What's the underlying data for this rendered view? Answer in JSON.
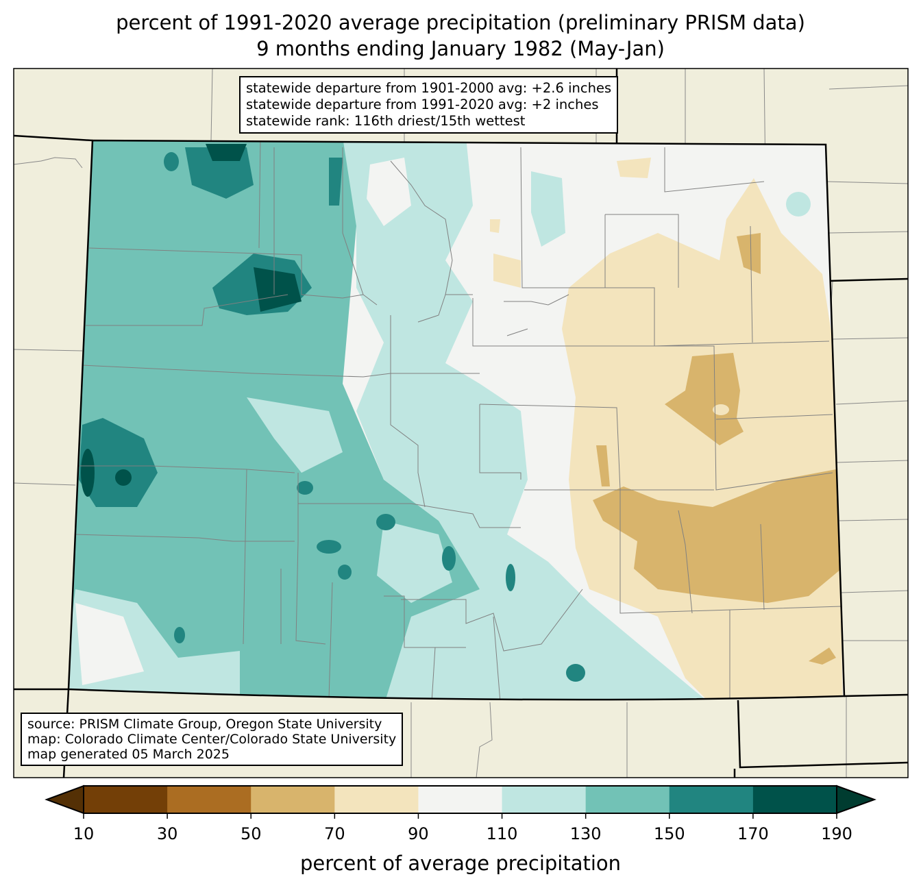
{
  "title": {
    "line1": "percent of 1991-2020 average precipitation (preliminary PRISM data)",
    "line2": "9 months ending January 1982 (May-Jan)"
  },
  "stats_box": {
    "line1": "statewide departure from 1901-2000 avg: +2.6 inches",
    "line2": "statewide departure from 1991-2020 avg: +2 inches",
    "line3": "statewide rank: 116th driest/15th wettest"
  },
  "source_box": {
    "line1": "source: PRISM Climate Group, Oregon State University",
    "line2": "map: Colorado Climate Center/Colorado State University",
    "line3": "map generated 05 March 2025"
  },
  "colorbar": {
    "label": "percent of average precipitation",
    "ticks": [
      "10",
      "30",
      "50",
      "70",
      "90",
      "110",
      "130",
      "150",
      "170",
      "190"
    ],
    "colors": [
      "#733f07",
      "#ab6d22",
      "#d8b46c",
      "#f3e4bd",
      "#f3f4f2",
      "#bfe6e1",
      "#72c2b6",
      "#218580",
      "#00524a"
    ],
    "under_color": "#543005",
    "over_color": "#003c30"
  },
  "colors": {
    "background_states": "#f0eedc"
  }
}
